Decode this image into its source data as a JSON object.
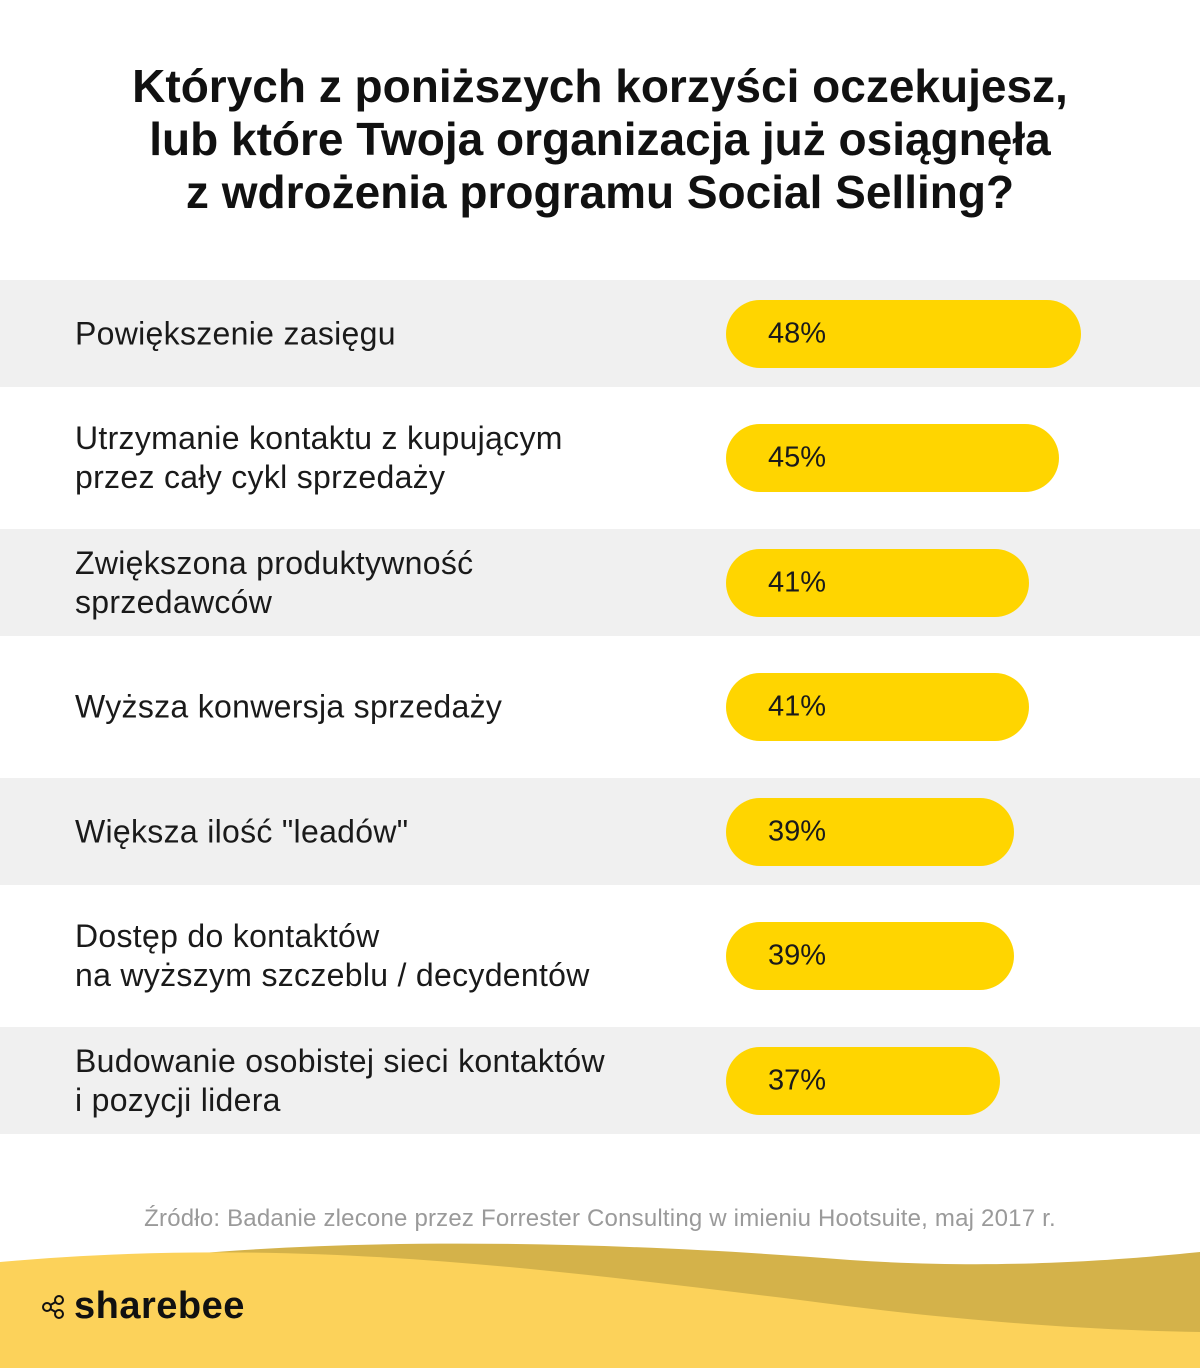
{
  "title_lines": [
    "Których z poniższych korzyści oczekujesz,",
    "lub które Twoja organizacja już osiągnęła",
    "z wdrożenia programu Social Selling?"
  ],
  "chart_data": {
    "type": "bar",
    "orientation": "horizontal",
    "categories": [
      "Powiększenie zasięgu",
      "Utrzymanie kontaktu z kupującym\nprzez cały cykl sprzedaży",
      "Zwiększona produktywność\nsprzedawców",
      "Wyższa konwersja sprzedaży",
      "Większa ilość \"leadów\"",
      "Dostęp do kontaktów\nna wyższym szczeblu / decydentów",
      "Budowanie osobistej sieci kontaktów\ni pozycji lidera"
    ],
    "values": [
      48,
      45,
      41,
      41,
      39,
      39,
      37
    ],
    "value_labels": [
      "48%",
      "45%",
      "41%",
      "41%",
      "39%",
      "39%",
      "37%"
    ],
    "unit": "%",
    "bar_color": "#ffd500",
    "title": "Których z poniższych korzyści oczekujesz, lub które Twoja organizacja już osiągnęła z wdrożenia programu Social Selling?"
  },
  "source": "Źródło: Badanie zlecone przez Forrester Consulting w imieniu Hootsuite, maj 2017 r.",
  "brand": {
    "name": "sharebee",
    "icon": "share-nodes-icon"
  },
  "colors": {
    "accent": "#ffd500",
    "row_alt": "#f0f0f0",
    "wave_light": "#fcd25a",
    "wave_dark": "#d4b24a"
  }
}
